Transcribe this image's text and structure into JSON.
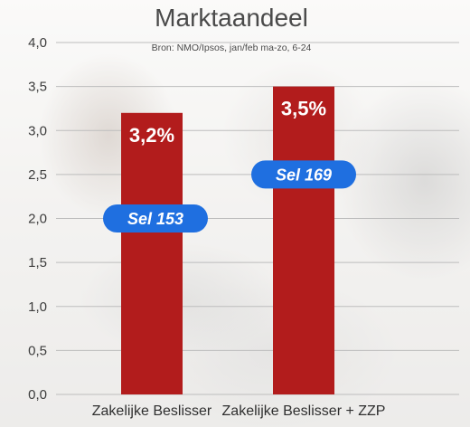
{
  "chart_data": {
    "type": "bar",
    "title": "Marktaandeel",
    "subtitle": "Bron: NMO/Ipsos, jan/feb ma-zo, 6-24",
    "categories": [
      "Zakelijke Beslisser",
      "Zakelijke Beslisser + ZZP"
    ],
    "values": [
      3.2,
      3.5
    ],
    "data_labels": [
      "3,2%",
      "3,5%"
    ],
    "annotations": [
      "Sel 153",
      "Sel 169"
    ],
    "annotation_values": [
      2.0,
      2.5
    ],
    "yticks": [
      "0,0",
      "0,5",
      "1,0",
      "1,5",
      "2,0",
      "2,5",
      "3,0",
      "3,5",
      "4,0"
    ],
    "ylim": [
      0,
      4.0
    ],
    "grid": true,
    "colors": {
      "bar": "#b21c1c",
      "badge": "#1f6fe0",
      "grid": "#bdbdbd"
    }
  }
}
